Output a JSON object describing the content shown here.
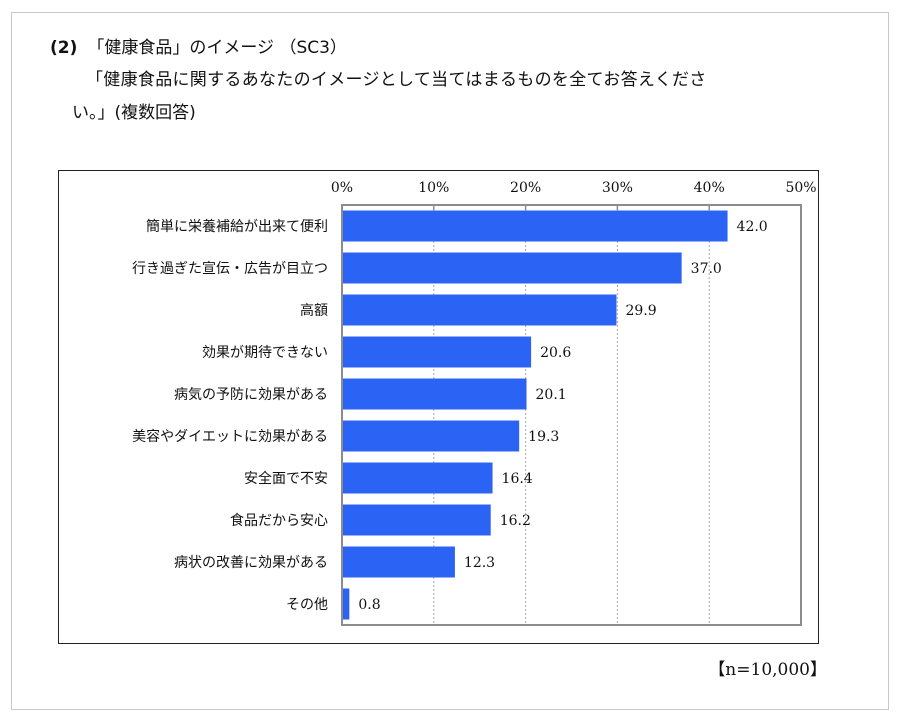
{
  "heading": {
    "number": "(2)",
    "title": "「健康食品」のイメージ （SC3）"
  },
  "question": {
    "line1": "「健康食品に関するあなたのイメージとして当てはまるものを全てお答えくださ",
    "line2": "い。」(複数回答)"
  },
  "sample_size": "【n=10,000】",
  "colors": {
    "bar": "#2B64F5",
    "grid": "#a8a8a8",
    "frame": "#8c8c8c"
  },
  "chart_data": {
    "type": "bar",
    "orientation": "horizontal",
    "title": "",
    "xlabel": "",
    "ylabel": "",
    "xlim": [
      0,
      50
    ],
    "x_ticks": [
      0,
      10,
      20,
      30,
      40,
      50
    ],
    "x_tick_labels": [
      "0%",
      "10%",
      "20%",
      "30%",
      "40%",
      "50%"
    ],
    "x_axis_position": "top",
    "grid": true,
    "categories": [
      "簡単に栄養補給が出来て便利",
      "行き過ぎた宣伝・広告が目立つ",
      "高額",
      "効果が期待できない",
      "病気の予防に効果がある",
      "美容やダイエットに効果がある",
      "安全面で不安",
      "食品だから安心",
      "病状の改善に効果がある",
      "その他"
    ],
    "values": [
      42.0,
      37.0,
      29.9,
      20.6,
      20.1,
      19.3,
      16.4,
      16.2,
      12.3,
      0.8
    ],
    "value_labels": [
      "42.0",
      "37.0",
      "29.9",
      "20.6",
      "20.1",
      "19.3",
      "16.4",
      "16.2",
      "12.3",
      "0.8"
    ]
  }
}
